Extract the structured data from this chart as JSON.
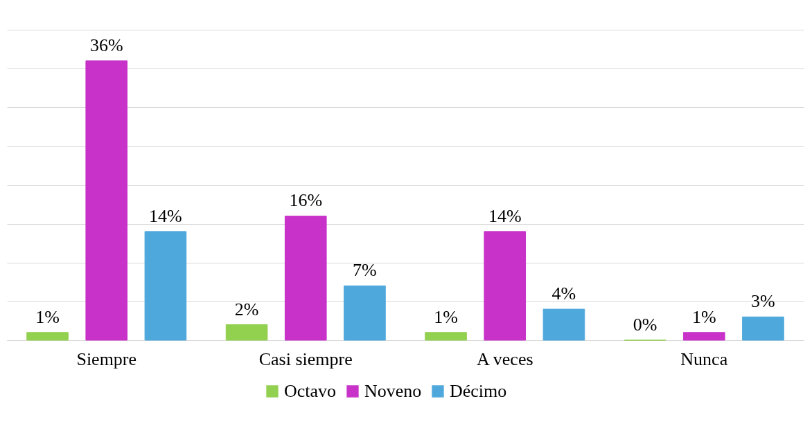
{
  "chart_data": {
    "type": "bar",
    "categories": [
      "Siempre",
      "Casi siempre",
      "A veces",
      "Nunca"
    ],
    "series": [
      {
        "name": "Octavo",
        "color": "#92d050",
        "values": [
          1,
          2,
          1,
          0
        ],
        "value_labels": [
          "1%",
          "2%",
          "1%",
          "0%"
        ]
      },
      {
        "name": "Noveno",
        "color": "#c832c8",
        "values": [
          36,
          16,
          14,
          1
        ],
        "value_labels": [
          "36%",
          "16%",
          "14%",
          "1%"
        ]
      },
      {
        "name": "Décimo",
        "color": "#4fa8dc",
        "values": [
          14,
          7,
          4,
          3
        ],
        "value_labels": [
          "14%",
          "7%",
          "4%",
          "3%"
        ]
      }
    ],
    "ylim": [
      0,
      40
    ],
    "yticks": [
      {
        "value": 0,
        "label": null
      },
      {
        "value": 5,
        "label": null
      },
      {
        "value": 10,
        "label": null
      },
      {
        "value": 15,
        "label": null
      },
      {
        "value": 20,
        "label": null
      },
      {
        "value": 25,
        "label": null
      },
      {
        "value": 30,
        "label": null
      },
      {
        "value": 35,
        "label": null
      },
      {
        "value": 40,
        "label": null
      }
    ],
    "grid": "y",
    "tick_labels": "x",
    "legend": "bottom"
  }
}
